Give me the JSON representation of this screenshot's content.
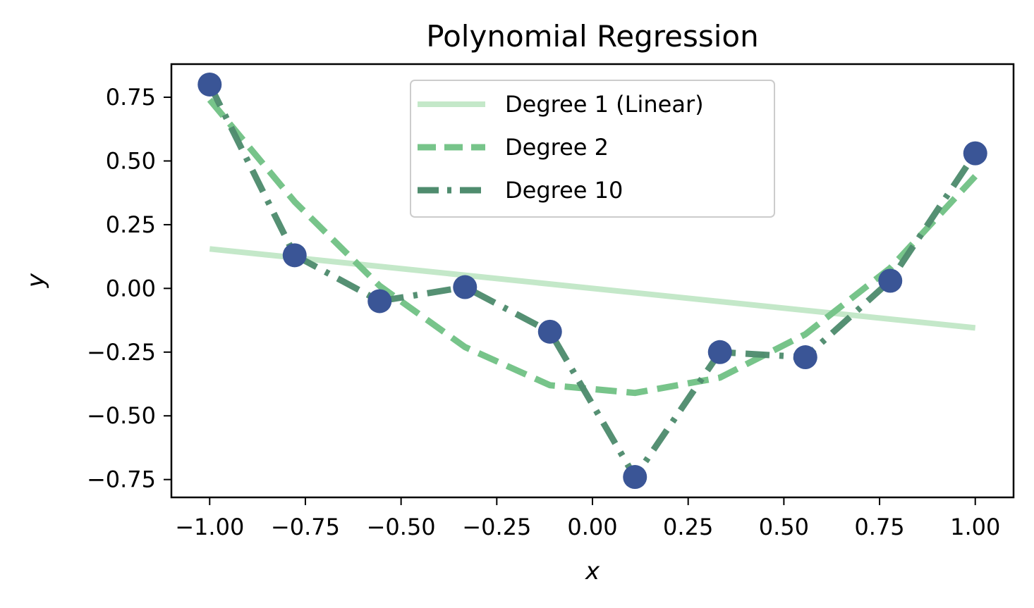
{
  "chart_data": {
    "type": "line",
    "title": "Polynomial Regression",
    "xlabel": "x",
    "ylabel": "y",
    "xlim": [
      -1.1,
      1.1
    ],
    "ylim": [
      -0.82,
      0.88
    ],
    "xticks": [
      -1.0,
      -0.75,
      -0.5,
      -0.25,
      0.0,
      0.25,
      0.5,
      0.75,
      1.0
    ],
    "xtick_labels": [
      "−1.00",
      "−0.75",
      "−0.50",
      "−0.25",
      "0.00",
      "0.25",
      "0.50",
      "0.75",
      "1.00"
    ],
    "yticks": [
      0.75,
      0.5,
      0.25,
      0.0,
      -0.25,
      -0.5,
      -0.75
    ],
    "ytick_labels": [
      "0.75",
      "0.50",
      "0.25",
      "0.00",
      "−0.25",
      "−0.50",
      "−0.75"
    ],
    "grid": false,
    "legend_position": "upper center",
    "x": [
      -1.0,
      -0.778,
      -0.556,
      -0.333,
      -0.111,
      0.111,
      0.333,
      0.556,
      0.778,
      1.0
    ],
    "points": {
      "y": [
        0.8,
        0.13,
        -0.05,
        0.005,
        -0.17,
        -0.74,
        -0.25,
        -0.27,
        0.03,
        0.53
      ],
      "color": "#3a5596"
    },
    "series": [
      {
        "name": "Degree 1 (Linear)",
        "color": "#c4e8c9",
        "style": "solid",
        "x": [
          -1.0,
          1.0
        ],
        "values": [
          0.155,
          -0.155
        ]
      },
      {
        "name": "Degree 2",
        "color": "#77c48a",
        "style": "dashed",
        "x": [
          -1.0,
          -0.778,
          -0.556,
          -0.333,
          -0.111,
          0.111,
          0.333,
          0.556,
          0.778,
          1.0
        ],
        "values": [
          0.74,
          0.34,
          0.01,
          -0.23,
          -0.38,
          -0.41,
          -0.35,
          -0.18,
          0.08,
          0.44
        ]
      },
      {
        "name": "Degree 10",
        "color": "#4f8c6e",
        "style": "dashdot",
        "x": [
          -1.0,
          -0.778,
          -0.556,
          -0.333,
          -0.111,
          0.111,
          0.333,
          0.556,
          0.778,
          1.0
        ],
        "values": [
          0.8,
          0.13,
          -0.05,
          0.005,
          -0.17,
          -0.74,
          -0.25,
          -0.27,
          0.03,
          0.53
        ]
      }
    ]
  }
}
